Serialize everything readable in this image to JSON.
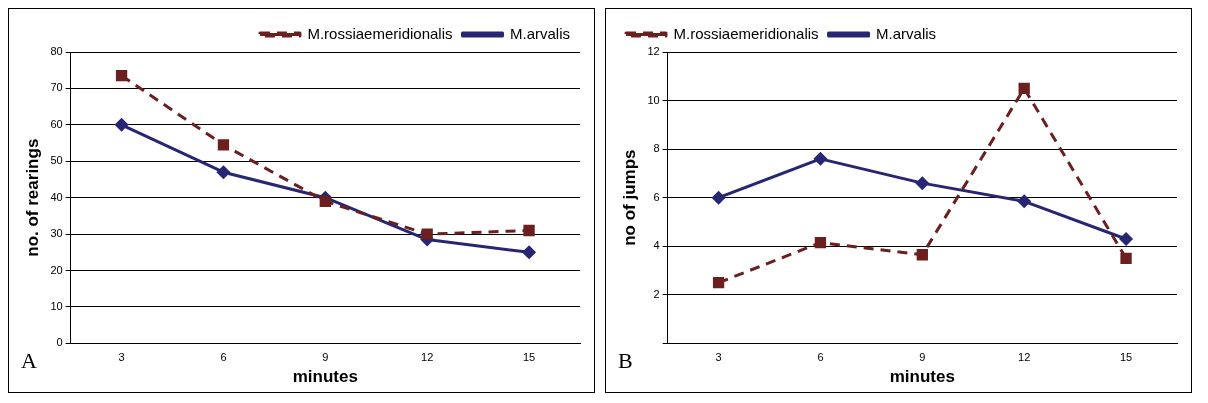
{
  "chart_data": [
    {
      "type": "line",
      "xlabel": "minutes",
      "ylabel": "no. of rearings",
      "categories": [
        "3",
        "6",
        "9",
        "12",
        "15"
      ],
      "ylim": [
        0,
        80
      ],
      "yticks": [
        0,
        10,
        20,
        30,
        40,
        50,
        60,
        70,
        80
      ],
      "grid": "y",
      "legend": "top right",
      "annotations": [
        "A"
      ],
      "series": [
        {
          "name": "M.arvalis",
          "color": "#262673",
          "marker": "diamond",
          "line_style": "solid",
          "values": [
            60,
            47,
            40,
            28.5,
            25
          ]
        },
        {
          "name": "M.rossiaemeridionalis",
          "color": "#6b1f1f",
          "marker": "square",
          "line_style": "dashed",
          "values": [
            73.5,
            54.5,
            39,
            30,
            31
          ]
        }
      ]
    },
    {
      "type": "line",
      "xlabel": "minutes",
      "ylabel": "no of jumps",
      "categories": [
        "3",
        "6",
        "9",
        "12",
        "15"
      ],
      "ylim": [
        0,
        12
      ],
      "yticks": [
        {
          "value": 0,
          "label": null
        },
        2,
        4,
        6,
        8,
        10,
        12
      ],
      "grid": "y",
      "legend": "top left",
      "annotations": [
        "B"
      ],
      "series": [
        {
          "name": "M.arvalis",
          "color": "#262673",
          "marker": "diamond",
          "line_style": "solid",
          "values": [
            6,
            7.6,
            6.6,
            5.85,
            4.3
          ]
        },
        {
          "name": "M.rossiaemeridionalis",
          "color": "#6b1f1f",
          "marker": "square",
          "line_style": "dashed",
          "values": [
            2.5,
            4.15,
            3.65,
            10.5,
            3.5
          ]
        }
      ]
    }
  ]
}
